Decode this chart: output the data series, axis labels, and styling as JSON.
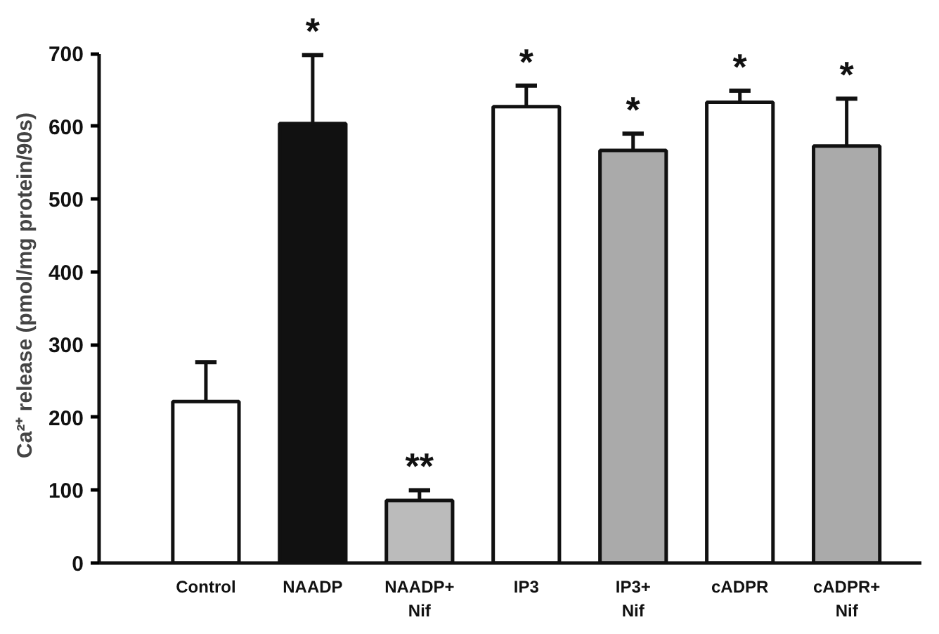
{
  "chart_data": {
    "type": "bar",
    "ylabel": "Ca²⁺ release (pmol/mg protein/90s)",
    "categories": [
      "Control",
      "NAADP",
      "NAADP+\nNif",
      "IP3",
      "IP3+\nNif",
      "cADPR",
      "cADPR+\nNif"
    ],
    "values": [
      222,
      604,
      86,
      627,
      567,
      633,
      573
    ],
    "errors": [
      54,
      94,
      14,
      29,
      23,
      16,
      65
    ],
    "colors": [
      "#ffffff",
      "#111111",
      "#bbbbbb",
      "#ffffff",
      "#aaaaaa",
      "#ffffff",
      "#aaaaaa"
    ],
    "ylim": [
      0,
      700
    ],
    "yticks": [
      0,
      100,
      200,
      300,
      400,
      500,
      600,
      700
    ],
    "grid": false,
    "annotations": [
      {
        "text": "*",
        "x": "NAADP",
        "y": 698
      },
      {
        "text": "**",
        "x": "NAADP+\nNif",
        "y": 100
      },
      {
        "text": "*",
        "x": "IP3",
        "y": 656
      },
      {
        "text": "*",
        "x": "IP3+\nNif",
        "y": 590
      },
      {
        "text": "*",
        "x": "cADPR",
        "y": 649
      },
      {
        "text": "*",
        "x": "cADPR+\nNif",
        "y": 638
      }
    ]
  }
}
